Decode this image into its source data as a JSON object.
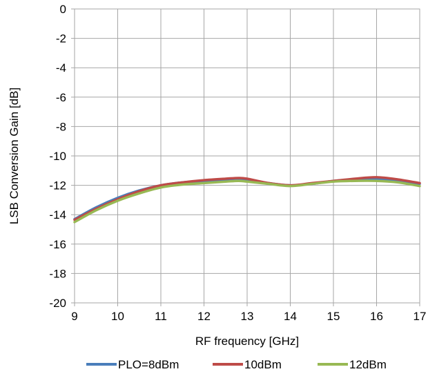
{
  "chart_data": {
    "type": "line",
    "xlabel": "RF frequency [GHz]",
    "ylabel": "LSB Conversion Gain [dB]",
    "xlim": [
      9,
      17
    ],
    "ylim": [
      -20,
      0
    ],
    "x_ticks": [
      "9",
      "10",
      "11",
      "12",
      "13",
      "14",
      "15",
      "16",
      "17"
    ],
    "y_ticks": [
      "0",
      "-2",
      "-4",
      "-6",
      "-8",
      "-10",
      "-12",
      "-14",
      "-16",
      "-18",
      "-20"
    ],
    "grid": true,
    "legend_position": "bottom",
    "series": [
      {
        "name": "PLO=8dBm",
        "color": "#4a7ebb",
        "x": [
          9,
          9.5,
          10,
          10.5,
          11,
          11.5,
          12,
          12.5,
          12.8,
          13,
          13.5,
          14,
          14.5,
          15,
          15.5,
          16,
          16.5,
          17
        ],
        "y": [
          -14.3,
          -13.5,
          -12.85,
          -12.35,
          -12.0,
          -11.8,
          -11.7,
          -11.6,
          -11.55,
          -11.6,
          -11.85,
          -12.0,
          -11.9,
          -11.7,
          -11.6,
          -11.55,
          -11.7,
          -11.9
        ]
      },
      {
        "name": "10dBm",
        "color": "#be4b48",
        "x": [
          9,
          9.5,
          10,
          10.5,
          11,
          11.5,
          12,
          12.5,
          12.8,
          13,
          13.5,
          14,
          14.5,
          15,
          15.5,
          16,
          16.5,
          17
        ],
        "y": [
          -14.35,
          -13.6,
          -12.95,
          -12.4,
          -12.0,
          -11.8,
          -11.65,
          -11.55,
          -11.5,
          -11.55,
          -11.85,
          -12.0,
          -11.85,
          -11.7,
          -11.55,
          -11.45,
          -11.6,
          -11.85
        ]
      },
      {
        "name": "12dBm",
        "color": "#98b954",
        "x": [
          9,
          9.5,
          10,
          10.5,
          11,
          11.5,
          12,
          12.5,
          12.8,
          13,
          13.5,
          14,
          14.5,
          15,
          15.5,
          16,
          16.5,
          17
        ],
        "y": [
          -14.5,
          -13.7,
          -13.05,
          -12.55,
          -12.15,
          -11.95,
          -11.85,
          -11.75,
          -11.7,
          -11.75,
          -11.9,
          -12.05,
          -11.9,
          -11.75,
          -11.7,
          -11.7,
          -11.8,
          -12.05
        ]
      }
    ]
  }
}
